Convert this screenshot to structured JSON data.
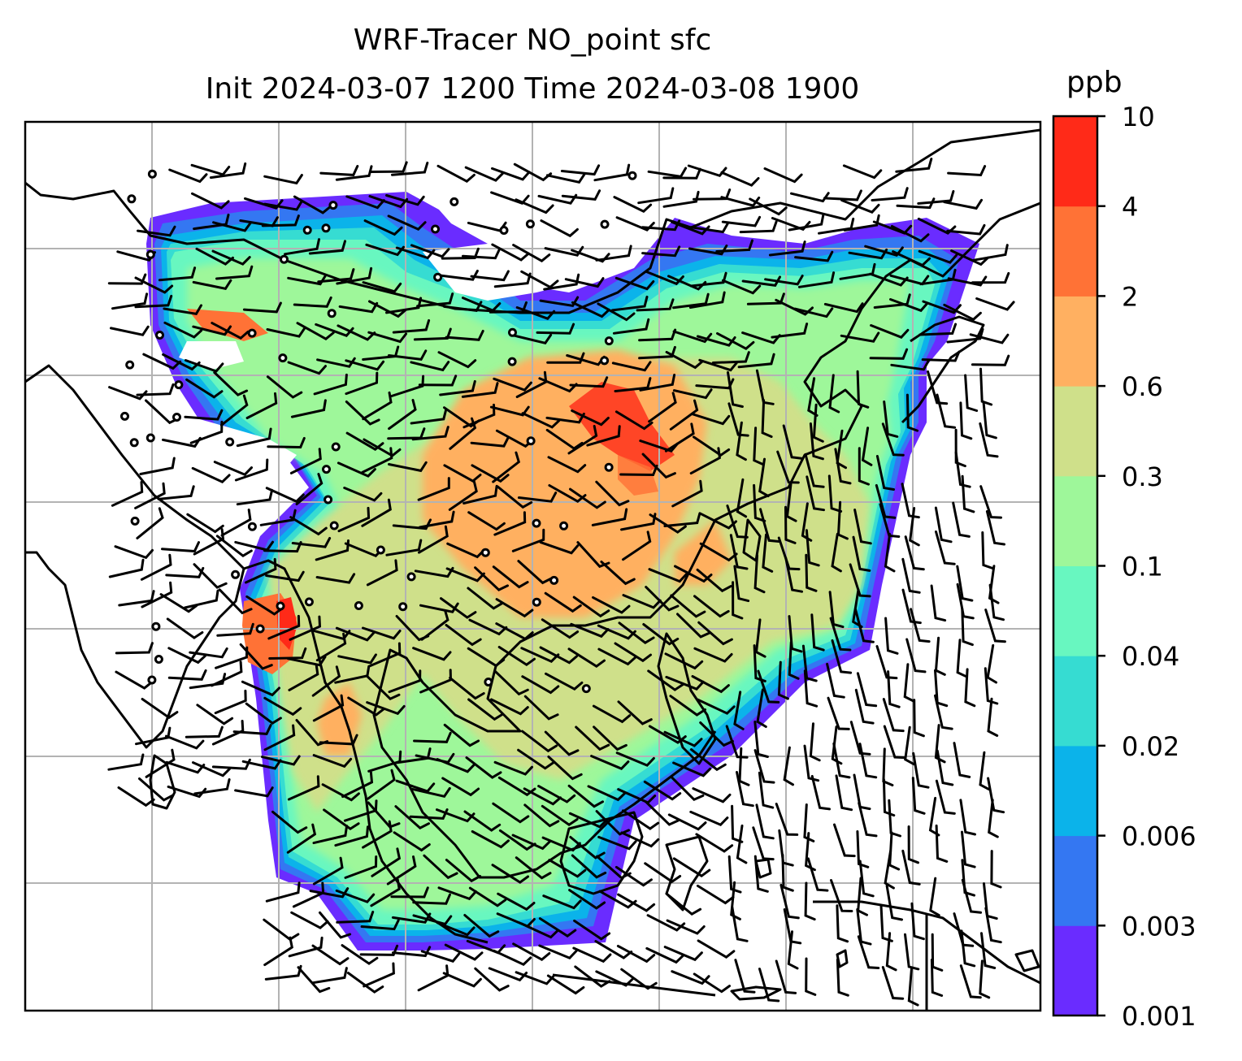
{
  "chart_data": {
    "type": "heatmap",
    "title": "WRF-Tracer NO_point sfc",
    "subtitle": "Init 2024-03-07 1200 Time 2024-03-08 1900",
    "colorbar": {
      "label": "ppb",
      "levels": [
        "0.001",
        "0.003",
        "0.006",
        "0.02",
        "0.04",
        "0.1",
        "0.3",
        "0.6",
        "2",
        "4",
        "10"
      ],
      "colors": [
        "#6a2cff",
        "#3477f2",
        "#0bb3ea",
        "#36dcd2",
        "#68f7c0",
        "#9ef79a",
        "#cfe08a",
        "#ffb061",
        "#ff7236",
        "#ff2a18"
      ]
    },
    "grid": true,
    "features": [
      "coastlines",
      "wind barbs",
      "calm-wind circles"
    ]
  }
}
